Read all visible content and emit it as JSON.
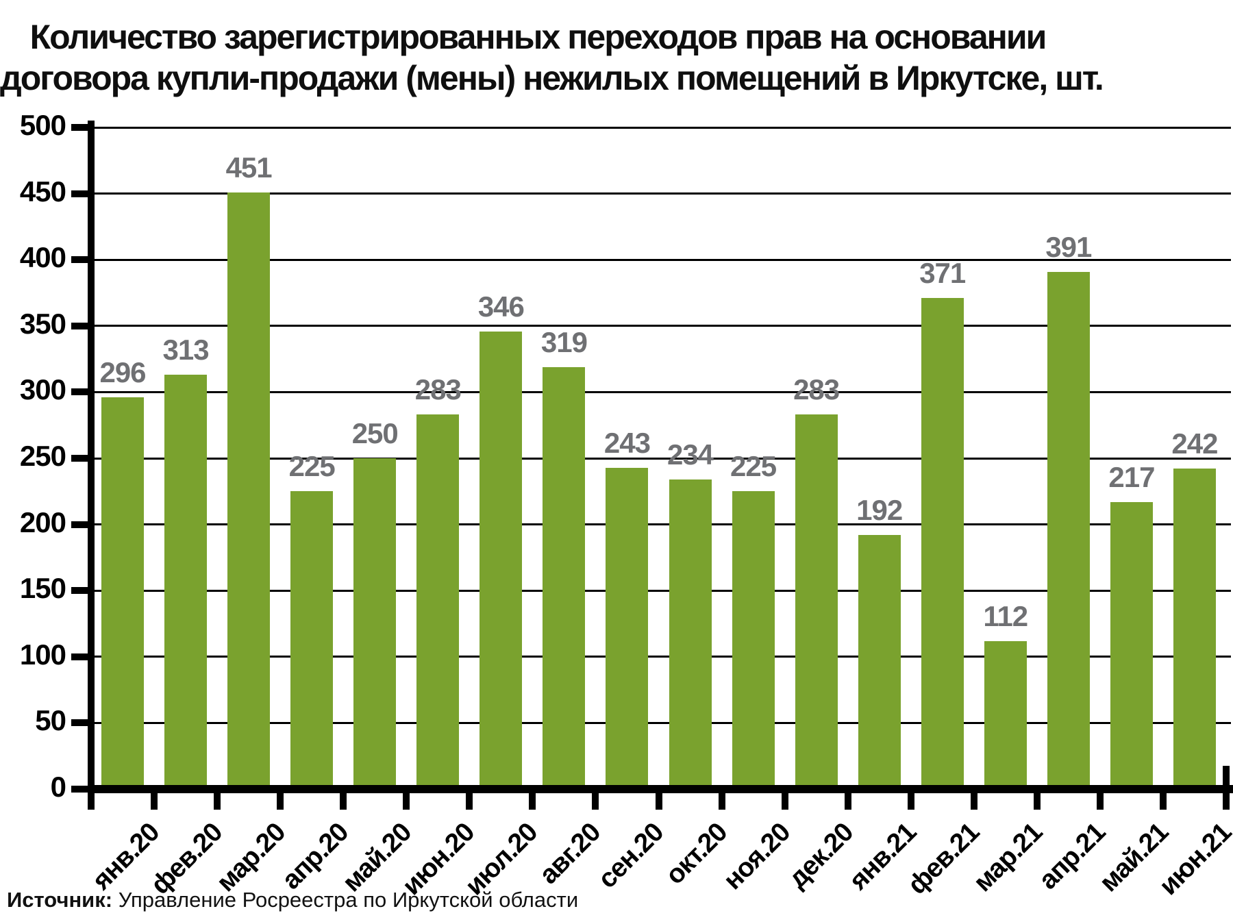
{
  "title": {
    "line1": "Количество зарегистрированных переходов прав на основании",
    "line2": "договора купли-продажи (мены) нежилых помещений в Иркутске, шт."
  },
  "source": {
    "label": "Источник:",
    "text": " Управление Росреестра по Иркутской области"
  },
  "colors": {
    "bar": "#7aa22e",
    "value_label": "#6f7073",
    "axis": "#000000",
    "background": "#ffffff"
  },
  "chart_data": {
    "type": "bar",
    "title": "Количество зарегистрированных переходов прав на основании договора купли-продажи (мены) нежилых помещений в Иркутске, шт.",
    "categories": [
      "янв.20",
      "фев.20",
      "мар.20",
      "апр.20",
      "май.20",
      "июн.20",
      "июл.20",
      "авг.20",
      "сен.20",
      "окт.20",
      "ноя.20",
      "дек.20",
      "янв.21",
      "фев.21",
      "мар.21",
      "апр.21",
      "май.21",
      "июн.21"
    ],
    "values": [
      296,
      313,
      451,
      225,
      250,
      283,
      346,
      319,
      243,
      234,
      225,
      283,
      192,
      371,
      112,
      391,
      217,
      242
    ],
    "xlabel": "",
    "ylabel": "",
    "ylim": [
      0,
      500
    ],
    "ytick_step": 50,
    "grid": true,
    "legend": false,
    "value_labels": true,
    "source": "Источник: Управление Росреестра по Иркутской области"
  }
}
